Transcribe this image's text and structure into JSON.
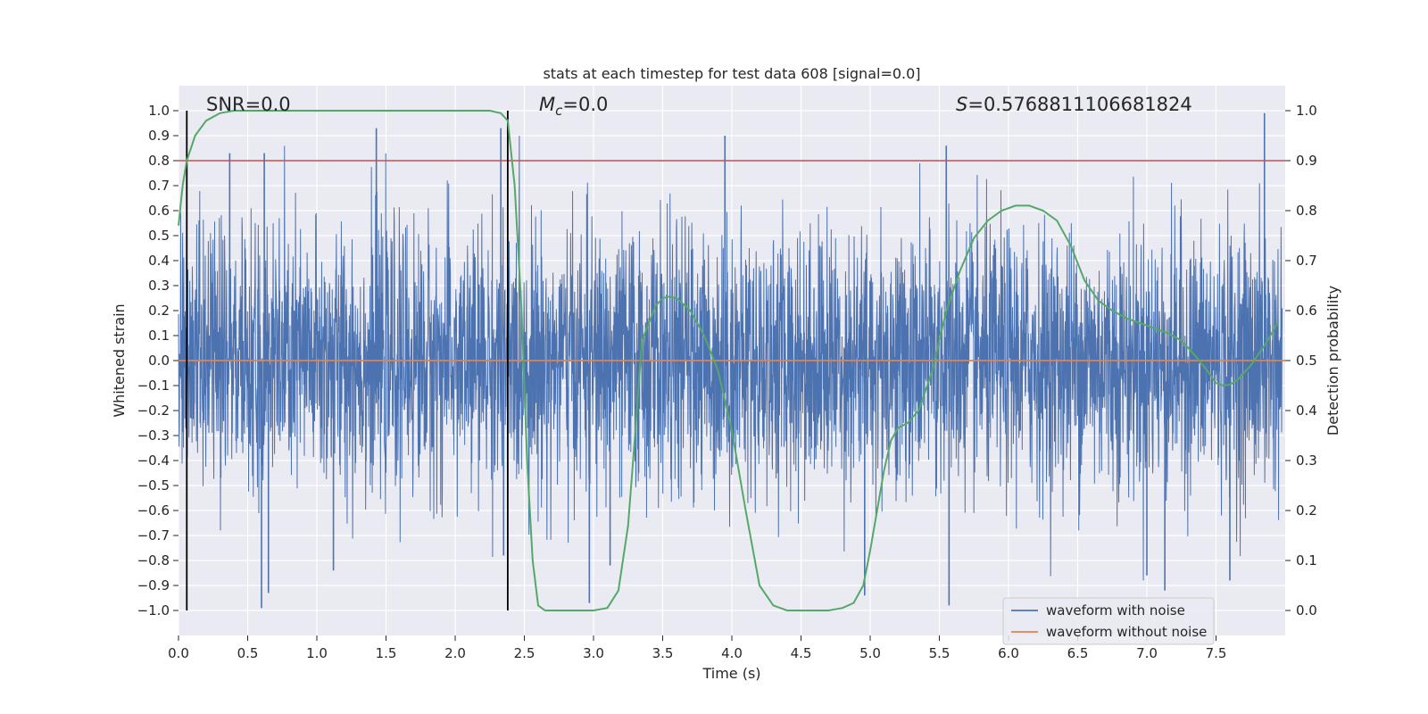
{
  "chart_data": {
    "type": "line",
    "title": "stats at each timestep for test data 608 [signal=0.0]",
    "xlabel": "Time (s)",
    "ylabel": "Whitened strain",
    "y2label": "Detection probability",
    "xlim": [
      0.0,
      8.0
    ],
    "ylim": [
      -1.1,
      1.1
    ],
    "y2lim": [
      -0.05,
      1.05
    ],
    "grid": true,
    "x_ticks": [
      "0.0",
      "0.5",
      "1.0",
      "1.5",
      "2.0",
      "2.5",
      "3.0",
      "3.5",
      "4.0",
      "4.5",
      "5.0",
      "5.5",
      "6.0",
      "6.5",
      "7.0",
      "7.5"
    ],
    "y_ticks": [
      "−1.0",
      "−0.9",
      "−0.8",
      "−0.7",
      "−0.6",
      "−0.5",
      "−0.4",
      "−0.3",
      "−0.2",
      "−0.1",
      "0.0",
      "0.1",
      "0.2",
      "0.3",
      "0.4",
      "0.5",
      "0.6",
      "0.7",
      "0.8",
      "0.9",
      "1.0"
    ],
    "y2_ticks": [
      "0.0",
      "0.1",
      "0.2",
      "0.3",
      "0.4",
      "0.5",
      "0.6",
      "0.7",
      "0.8",
      "0.9",
      "1.0"
    ],
    "annotations": {
      "snr": "SNR=0.0",
      "mc_sym": "M",
      "mc_sub": "c",
      "mc_val": "=0.0",
      "s_sym": "S",
      "s_val": "=0.5768811106681824"
    },
    "vertical_lines_x": [
      0.06,
      2.38
    ],
    "threshold_line": {
      "axis": "y2",
      "value": 0.9,
      "color": "#c44e52"
    },
    "series": [
      {
        "name": "waveform with noise",
        "color": "#4c72b0",
        "axis": "y",
        "description": "noise, amplitude roughly within ±0.6 with peaks to ±1.0",
        "peaks": [
          {
            "x": 0.37,
            "y": 0.83
          },
          {
            "x": 0.62,
            "y": 0.83
          },
          {
            "x": 1.43,
            "y": 0.93
          },
          {
            "x": 2.33,
            "y": 0.93
          },
          {
            "x": 3.95,
            "y": 0.9
          },
          {
            "x": 7.85,
            "y": 0.99
          },
          {
            "x": 0.6,
            "y": -0.99
          },
          {
            "x": 0.65,
            "y": -0.93
          },
          {
            "x": 2.97,
            "y": -0.97
          },
          {
            "x": 4.96,
            "y": -0.94
          },
          {
            "x": 5.57,
            "y": -0.98
          },
          {
            "x": 7.13,
            "y": -0.92
          },
          {
            "x": 7.6,
            "y": -0.88
          },
          {
            "x": 7.0,
            "y": -0.86
          },
          {
            "x": 1.12,
            "y": -0.84
          },
          {
            "x": 2.35,
            "y": -0.78
          },
          {
            "x": 3.12,
            "y": -0.82
          },
          {
            "x": 5.55,
            "y": 0.86
          }
        ]
      },
      {
        "name": "waveform without noise",
        "color": "#dd8452",
        "axis": "y",
        "x": [
          0.0,
          8.0
        ],
        "y": [
          0.0,
          0.0
        ]
      },
      {
        "name": "detection probability",
        "color": "#55a868",
        "axis": "y2",
        "x": [
          0.0,
          0.03,
          0.06,
          0.12,
          0.2,
          0.3,
          0.4,
          0.5,
          1.0,
          1.5,
          2.0,
          2.25,
          2.33,
          2.38,
          2.43,
          2.48,
          2.52,
          2.56,
          2.6,
          2.65,
          2.8,
          3.0,
          3.1,
          3.18,
          3.25,
          3.3,
          3.35,
          3.45,
          3.5,
          3.55,
          3.6,
          3.7,
          3.8,
          3.9,
          4.0,
          4.1,
          4.2,
          4.3,
          4.4,
          4.5,
          4.6,
          4.7,
          4.8,
          4.88,
          4.95,
          5.0,
          5.05,
          5.1,
          5.15,
          5.2,
          5.27,
          5.35,
          5.45,
          5.55,
          5.65,
          5.75,
          5.85,
          5.95,
          6.05,
          6.15,
          6.25,
          6.35,
          6.45,
          6.55,
          6.65,
          6.75,
          6.85,
          6.95,
          7.05,
          7.15,
          7.25,
          7.35,
          7.45,
          7.5,
          7.55,
          7.6,
          7.65,
          7.75,
          7.85,
          7.95
        ],
        "y": [
          0.77,
          0.85,
          0.9,
          0.95,
          0.98,
          0.995,
          1.0,
          1.0,
          1.0,
          1.0,
          1.0,
          1.0,
          0.995,
          0.98,
          0.85,
          0.6,
          0.3,
          0.1,
          0.01,
          0.0,
          0.0,
          0.0,
          0.005,
          0.04,
          0.17,
          0.35,
          0.54,
          0.61,
          0.625,
          0.628,
          0.625,
          0.6,
          0.55,
          0.48,
          0.36,
          0.2,
          0.05,
          0.01,
          0.0,
          0.0,
          0.0,
          0.0,
          0.005,
          0.015,
          0.05,
          0.12,
          0.2,
          0.28,
          0.34,
          0.365,
          0.375,
          0.4,
          0.48,
          0.6,
          0.68,
          0.745,
          0.78,
          0.8,
          0.81,
          0.81,
          0.8,
          0.78,
          0.73,
          0.66,
          0.62,
          0.6,
          0.585,
          0.575,
          0.565,
          0.555,
          0.54,
          0.51,
          0.475,
          0.455,
          0.45,
          0.452,
          0.46,
          0.49,
          0.53,
          0.577
        ]
      }
    ]
  }
}
